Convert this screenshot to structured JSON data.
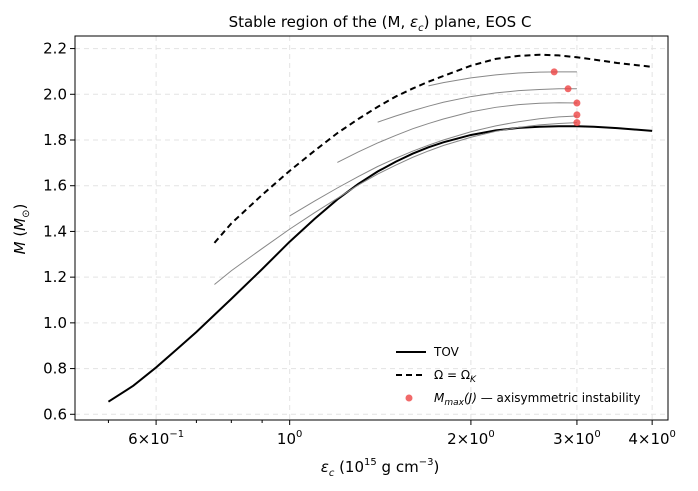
{
  "chart_data": {
    "type": "line",
    "title": "Stable region of the (M, εc) plane, EOS C",
    "xlabel": "εc (10^15 g cm^-3)",
    "ylabel": "M (M☉)",
    "xscale": "log",
    "xlim": [
      0.44,
      4.25
    ],
    "ylim": [
      0.575,
      2.255
    ],
    "grid": true,
    "legend_position": "lower-right",
    "x_ticks": [
      {
        "value": 0.6,
        "base": "6",
        "exp": "−1"
      },
      {
        "value": 1.0,
        "base": "10",
        "exp": "0"
      },
      {
        "value": 2.0,
        "base": "2",
        "exp": "0"
      },
      {
        "value": 3.0,
        "base": "3",
        "exp": "0"
      },
      {
        "value": 4.0,
        "base": "4",
        "exp": "0"
      }
    ],
    "y_ticks": [
      "0.6",
      "0.8",
      "1.0",
      "1.2",
      "1.4",
      "1.6",
      "1.8",
      "2.0",
      "2.2"
    ],
    "series": [
      {
        "name": "TOV",
        "style": "solid",
        "color": "#000000",
        "x": [
          0.5,
          0.55,
          0.6,
          0.65,
          0.7,
          0.75,
          0.8,
          0.9,
          1.0,
          1.1,
          1.2,
          1.3,
          1.4,
          1.5,
          1.6,
          1.7,
          1.8,
          2.0,
          2.2,
          2.4,
          2.6,
          2.8,
          3.0,
          3.2,
          3.5,
          4.0
        ],
        "y": [
          0.655,
          0.725,
          0.805,
          0.885,
          0.96,
          1.035,
          1.105,
          1.235,
          1.355,
          1.455,
          1.54,
          1.608,
          1.662,
          1.705,
          1.74,
          1.768,
          1.79,
          1.822,
          1.842,
          1.853,
          1.858,
          1.86,
          1.86,
          1.858,
          1.852,
          1.84
        ]
      },
      {
        "name": "Ω = ΩK",
        "style": "dashed",
        "color": "#000000",
        "x": [
          0.75,
          0.8,
          0.9,
          1.0,
          1.1,
          1.2,
          1.3,
          1.4,
          1.5,
          1.6,
          1.7,
          1.8,
          2.0,
          2.2,
          2.4,
          2.6,
          2.8,
          3.0,
          3.2,
          3.5,
          4.0
        ],
        "y": [
          1.35,
          1.435,
          1.56,
          1.665,
          1.753,
          1.83,
          1.892,
          1.945,
          1.99,
          2.025,
          2.055,
          2.08,
          2.125,
          2.155,
          2.168,
          2.173,
          2.17,
          2.162,
          2.152,
          2.137,
          2.12
        ]
      },
      {
        "name": "",
        "style": "solid",
        "color": "#888888",
        "x": [
          0.75,
          0.8,
          0.9,
          1.0,
          1.1,
          1.2,
          1.3,
          1.4,
          1.5,
          1.6,
          1.7,
          1.8,
          2.0,
          2.2,
          2.4,
          2.6,
          2.8,
          3.0
        ],
        "y": [
          1.168,
          1.228,
          1.325,
          1.41,
          1.482,
          1.545,
          1.603,
          1.651,
          1.69,
          1.724,
          1.752,
          1.776,
          1.812,
          1.838,
          1.855,
          1.866,
          1.872,
          1.876
        ]
      },
      {
        "name": "",
        "style": "solid",
        "color": "#888888",
        "x": [
          1.0,
          1.1,
          1.2,
          1.3,
          1.4,
          1.5,
          1.6,
          1.7,
          1.8,
          2.0,
          2.2,
          2.4,
          2.6,
          2.8,
          3.0
        ],
        "y": [
          1.468,
          1.533,
          1.59,
          1.64,
          1.684,
          1.72,
          1.751,
          1.777,
          1.8,
          1.836,
          1.862,
          1.88,
          1.893,
          1.901,
          1.905
        ]
      },
      {
        "name": "",
        "style": "solid",
        "color": "#888888",
        "x": [
          1.2,
          1.3,
          1.4,
          1.5,
          1.6,
          1.7,
          1.8,
          2.0,
          2.2,
          2.4,
          2.6,
          2.8,
          3.0
        ],
        "y": [
          1.702,
          1.748,
          1.787,
          1.82,
          1.849,
          1.872,
          1.892,
          1.923,
          1.943,
          1.955,
          1.961,
          1.963,
          1.962
        ]
      },
      {
        "name": "",
        "style": "solid",
        "color": "#888888",
        "x": [
          1.4,
          1.5,
          1.6,
          1.7,
          1.8,
          2.0,
          2.2,
          2.4,
          2.6,
          2.8,
          3.0
        ],
        "y": [
          1.878,
          1.905,
          1.928,
          1.948,
          1.965,
          1.99,
          2.006,
          2.016,
          2.021,
          2.024,
          2.024
        ]
      },
      {
        "name": "",
        "style": "solid",
        "color": "#888888",
        "x": [
          1.7,
          1.8,
          2.0,
          2.2,
          2.4,
          2.6,
          2.8,
          3.0
        ],
        "y": [
          2.037,
          2.051,
          2.072,
          2.085,
          2.093,
          2.097,
          2.098,
          2.098
        ]
      }
    ],
    "markers": {
      "name": "Mmax(J) — axisymmetric instability",
      "color": "#ee4444",
      "x": [
        2.75,
        2.9,
        3.0,
        3.0,
        3.0
      ],
      "y": [
        2.098,
        2.024,
        1.962,
        1.91,
        1.876
      ]
    },
    "legend": [
      {
        "label": "TOV",
        "kind": "solid"
      },
      {
        "label": "Ω = ΩK",
        "kind": "dashed"
      },
      {
        "label": "Mmax(J) — axisymmetric instability",
        "kind": "marker"
      }
    ]
  }
}
